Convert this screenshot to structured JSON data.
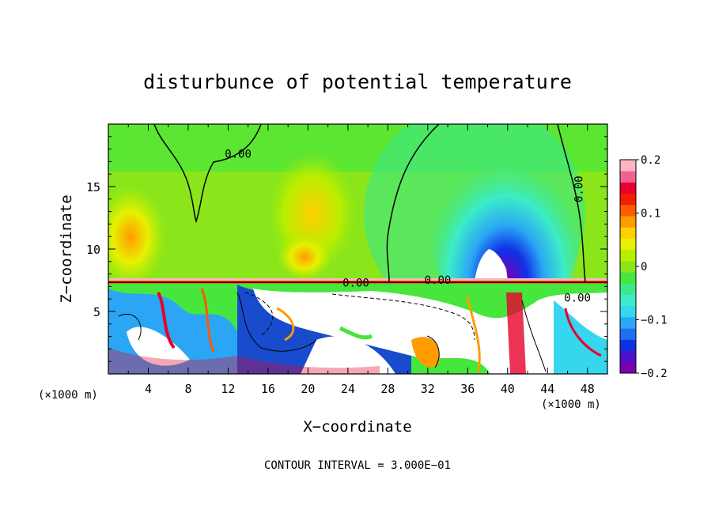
{
  "chart_data": {
    "type": "heatmap",
    "title": "disturbunce of potential temperature",
    "xlabel": "X−coordinate",
    "ylabel": "Z−coordinate",
    "x_unit_label": "(×1000 m)",
    "x_unit_label_right": "(×1000 m)",
    "footer": "CONTOUR INTERVAL = 3.000E−01",
    "xlim": [
      0,
      50
    ],
    "ylim": [
      0,
      20
    ],
    "x_ticks": [
      "4",
      "8",
      "12",
      "16",
      "20",
      "24",
      "28",
      "32",
      "36",
      "40",
      "44",
      "48"
    ],
    "x_tick_values": [
      4,
      8,
      12,
      16,
      20,
      24,
      28,
      32,
      36,
      40,
      44,
      48
    ],
    "y_ticks": [
      "5",
      "10",
      "15"
    ],
    "y_tick_values": [
      5,
      10,
      15
    ],
    "colorbar": {
      "min": -0.2,
      "max": 0.2,
      "ticks": [
        "0.2",
        "0.1",
        "0",
        "−0.1",
        "−0.2"
      ],
      "tick_values": [
        0.2,
        0.1,
        0,
        -0.1,
        -0.2
      ]
    },
    "contour_labels": [
      {
        "text": "0.00",
        "x": 13.0,
        "z": 17.3
      },
      {
        "text": "0.00",
        "x": 47.5,
        "z": 14.8
      },
      {
        "text": "0.00",
        "x": 24.8,
        "z": 7.0
      },
      {
        "text": "0.00",
        "x": 33.0,
        "z": 7.2
      },
      {
        "text": "0.00",
        "x": 47.0,
        "z": 5.8
      }
    ],
    "grid": false
  },
  "colors": {
    "palette": [
      "#7a00b4",
      "#4a12c8",
      "#1030e6",
      "#1e6ef0",
      "#2aa6f4",
      "#36d6ee",
      "#3cecc8",
      "#3ce888",
      "#46e63c",
      "#8ae61a",
      "#b8ee00",
      "#e8f000",
      "#ffd000",
      "#ff9c00",
      "#ff5a00",
      "#f41e00",
      "#e8002c",
      "#f06090",
      "#ffb4c0"
    ]
  }
}
